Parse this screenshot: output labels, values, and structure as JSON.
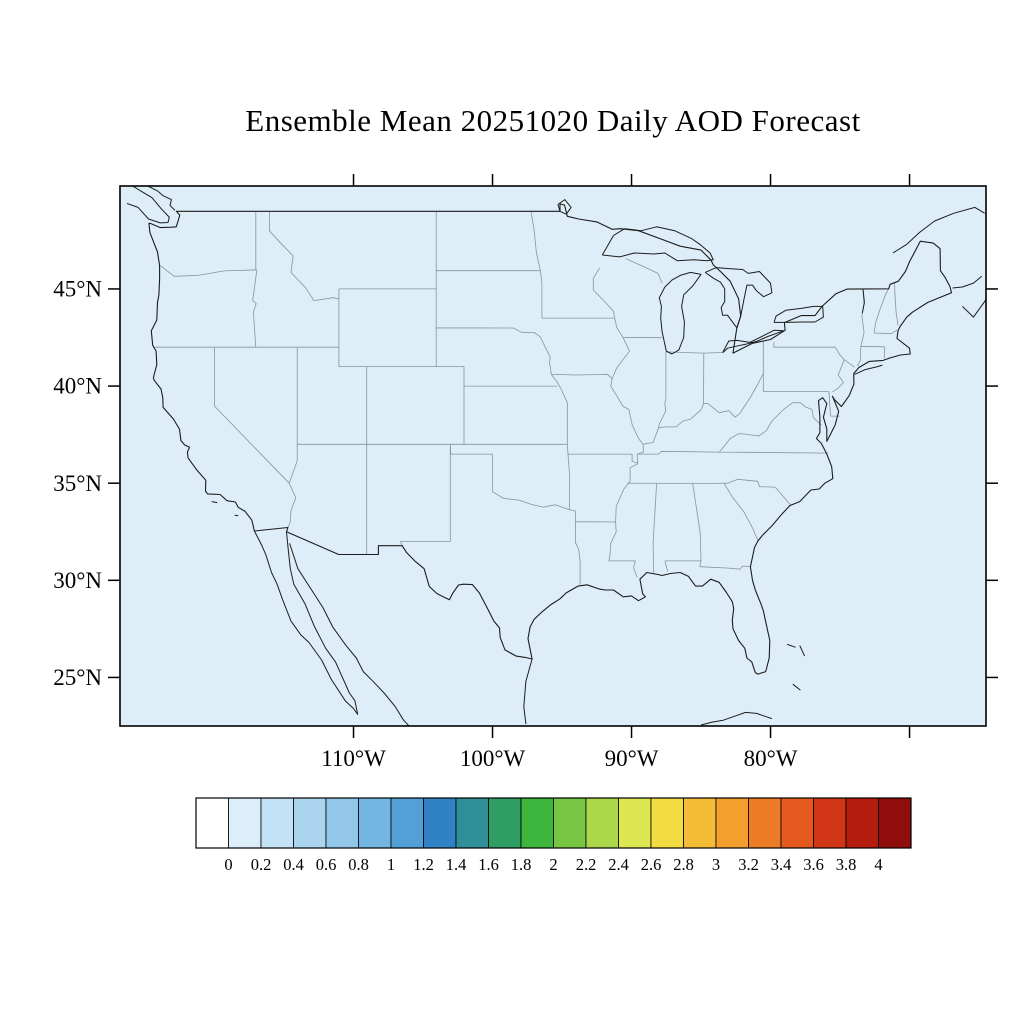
{
  "title": "Ensemble Mean 20251020 Daily AOD Forecast",
  "map": {
    "background_color": "#deeef8",
    "coast_color": "#1c1c1c",
    "state_line_color": "#8494a0",
    "lat_axis": [
      {
        "label": "45°N",
        "deg": 45
      },
      {
        "label": "40°N",
        "deg": 40
      },
      {
        "label": "35°N",
        "deg": 35
      },
      {
        "label": "30°N",
        "deg": 30
      },
      {
        "label": "25°N",
        "deg": 25
      }
    ],
    "lon_axis": [
      {
        "label": "110°W",
        "deg": -110
      },
      {
        "label": "100°W",
        "deg": -100
      },
      {
        "label": "90°W",
        "deg": -90
      },
      {
        "label": "80°W",
        "deg": -80
      }
    ],
    "unlabeled_lon_ticks": [
      -70
    ]
  },
  "colorbar": {
    "tick_labels": [
      "0",
      "0.2",
      "0.4",
      "0.6",
      "0.8",
      "1",
      "1.2",
      "1.4",
      "1.6",
      "1.8",
      "2",
      "2.2",
      "2.4",
      "2.6",
      "2.8",
      "3",
      "3.2",
      "3.4",
      "3.6",
      "3.8",
      "4"
    ],
    "cell_colors": [
      "#ffffff",
      "#dbeef9",
      "#c4e2f5",
      "#abd5ef",
      "#92c7e9",
      "#74b6e2",
      "#539fd7",
      "#3182c4",
      "#2f8e96",
      "#2e9e62",
      "#3eb53c",
      "#77c643",
      "#abd84a",
      "#dde74f",
      "#f3dc41",
      "#f5bd37",
      "#f29f2e",
      "#ed7c26",
      "#e5581e",
      "#d03616",
      "#b51c10",
      "#8f0d0b"
    ]
  },
  "chart_data": {
    "type": "heatmap",
    "title": "Ensemble Mean 20251020 Daily AOD Forecast",
    "variable": "Daily AOD (aerosol optical depth), ensemble mean forecast",
    "date": "20251020",
    "region": "Continental United States map with state boundaries",
    "x_axis": {
      "ticks": [
        "110°W",
        "100°W",
        "90°W",
        "80°W"
      ]
    },
    "y_axis": {
      "ticks": [
        "25°N",
        "30°N",
        "35°N",
        "40°N",
        "45°N"
      ]
    },
    "colorbar": {
      "levels": [
        0,
        0.2,
        0.4,
        0.6,
        0.8,
        1,
        1.2,
        1.4,
        1.6,
        1.8,
        2,
        2.2,
        2.4,
        2.6,
        2.8,
        3,
        3.2,
        3.4,
        3.6,
        3.8,
        4
      ],
      "colors": [
        "#ffffff",
        "#dbeef9",
        "#c4e2f5",
        "#abd5ef",
        "#92c7e9",
        "#74b6e2",
        "#539fd7",
        "#3182c4",
        "#2f8e96",
        "#2e9e62",
        "#3eb53c",
        "#77c643",
        "#abd84a",
        "#dde74f",
        "#f3dc41",
        "#f5bd37",
        "#f29f2e",
        "#ed7c26",
        "#e5581e",
        "#d03616",
        "#b51c10",
        "#8f0d0b"
      ]
    },
    "field_observation": "Entire map domain is shaded uniformly at the lowest level of the scale (AOD at or below about 0.2); no elevated AOD regions are visible",
    "grid": false,
    "legend_position": "horizontal colorbar below map"
  }
}
